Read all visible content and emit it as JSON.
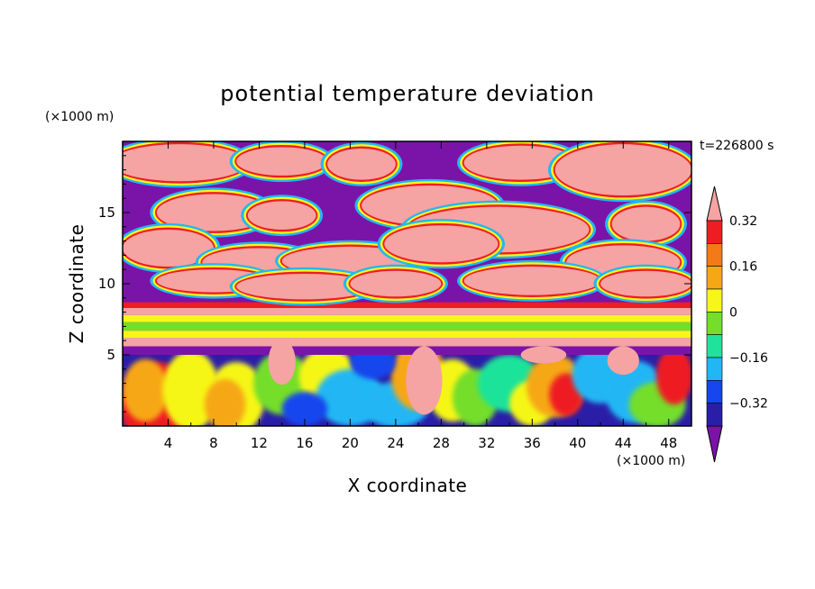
{
  "chart_data": {
    "type": "heatmap",
    "title": "potential temperature deviation",
    "xlabel": "X coordinate",
    "ylabel": "Z coordinate",
    "x_unit": "(×1000 m)",
    "y_unit": "(×1000 m)",
    "time_label": "t=226800 s",
    "xlim": [
      0,
      50
    ],
    "ylim": [
      0,
      20
    ],
    "x_ticks": [
      4,
      8,
      12,
      16,
      20,
      24,
      28,
      32,
      36,
      40,
      44,
      48
    ],
    "y_ticks": [
      5,
      10,
      15
    ],
    "colorbar": {
      "ticks": [
        0.32,
        0.16,
        0,
        -0.16,
        -0.32
      ],
      "tick_labels": [
        "0.32",
        "0.16",
        "0",
        "−0.16",
        "−0.32"
      ],
      "levels": [
        -0.4,
        -0.32,
        -0.24,
        -0.16,
        -0.08,
        0,
        0.08,
        0.16,
        0.24,
        0.32,
        0.4
      ],
      "colors": [
        "#7a14a8",
        "#2a1ea8",
        "#1646ee",
        "#22b7f4",
        "#1fe39a",
        "#74de2a",
        "#f6f619",
        "#f6a716",
        "#f27a18",
        "#ee1d22",
        "#f5a3a3"
      ],
      "extend": "both"
    },
    "field_description_regions": [
      {
        "z_range": [
          0,
          5.5
        ],
        "dominant": "mixed, warm (orange/red) and cool (blue/purple) eddies"
      },
      {
        "z_range": [
          5.5,
          8
        ],
        "dominant": "horizontal layered bands: yellow/green/pink"
      },
      {
        "z_range": [
          8,
          20
        ],
        "dominant": "large pink (warm) blobs within purple (cool) background"
      }
    ]
  }
}
